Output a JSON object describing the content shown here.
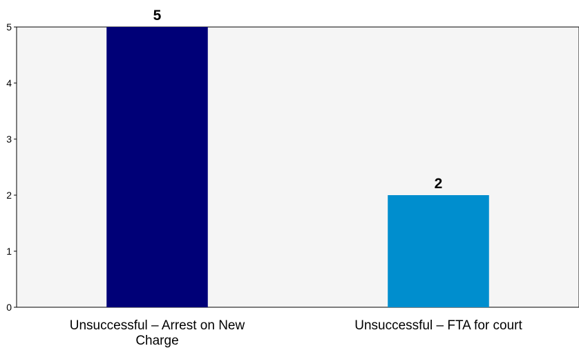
{
  "chart_data": {
    "type": "bar",
    "categories": [
      [
        "Unsuccessful – Arrest on New",
        "Charge"
      ],
      [
        "Unsuccessful – FTA for court"
      ]
    ],
    "values": [
      5,
      2
    ],
    "data_labels": [
      "5",
      "2"
    ],
    "colors": [
      "#000077",
      "#008ECE"
    ],
    "ylim": [
      0,
      5
    ],
    "yticks": [
      "0",
      "1",
      "2",
      "3",
      "4",
      "5"
    ],
    "plot_background": "#F5F5F5",
    "grid": false,
    "legend": "none",
    "title": "",
    "xlabel": "",
    "ylabel": ""
  }
}
